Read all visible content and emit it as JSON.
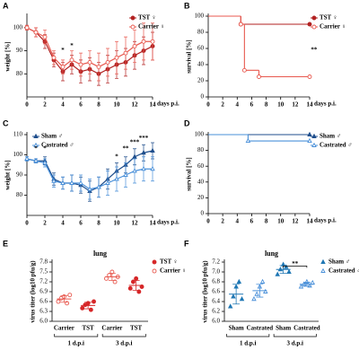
{
  "chart_data": [
    {
      "panel": "A",
      "type": "line",
      "x": [
        0,
        1,
        2,
        3,
        4,
        5,
        6,
        7,
        8,
        9,
        10,
        11,
        12,
        13,
        14
      ],
      "xlim": [
        0,
        14
      ],
      "xticks": [
        0,
        2,
        4,
        6,
        8,
        10,
        12,
        14
      ],
      "ylim": [
        70,
        105
      ],
      "yticks": [
        80,
        90,
        100
      ],
      "xlabel": "days p.i.",
      "ylabel": "weight [%]",
      "legend": "upper right",
      "series": [
        {
          "name": "TST ♀",
          "color": "#b22222",
          "marker": "circle",
          "filled": true,
          "values": [
            100,
            98,
            94,
            86,
            81,
            84,
            81,
            82,
            80,
            82,
            84,
            85,
            88,
            90,
            92
          ],
          "errors": [
            1,
            2,
            3,
            3,
            4,
            4,
            5,
            5,
            5,
            6,
            6,
            6,
            6,
            6,
            6
          ]
        },
        {
          "name": "Carrier ♀",
          "color": "#e8594f",
          "marker": "circle",
          "filled": false,
          "values": [
            100,
            98,
            96,
            87,
            83,
            86,
            84,
            85,
            83,
            85,
            87,
            89,
            92,
            94,
            94
          ],
          "errors": [
            1,
            2,
            3,
            3,
            3,
            4,
            5,
            5,
            6,
            6,
            7,
            7,
            7,
            8,
            8
          ]
        }
      ],
      "annotations": [
        "*",
        "*"
      ]
    },
    {
      "panel": "B",
      "type": "step",
      "xlim": [
        0,
        14
      ],
      "xticks": [
        0,
        2,
        4,
        6,
        8,
        10,
        12,
        14
      ],
      "ylim": [
        0,
        100
      ],
      "yticks": [
        0,
        20,
        40,
        60,
        80,
        100
      ],
      "xlabel": "days p.i.",
      "ylabel": "survival [%]",
      "legend": "upper right",
      "series": [
        {
          "name": "TST ♀",
          "color": "#b22222",
          "marker": "circle",
          "filled": true,
          "x": [
            0,
            4.5,
            14
          ],
          "values": [
            100,
            90,
            90
          ]
        },
        {
          "name": "Carrier ♀",
          "color": "#e8594f",
          "marker": "circle",
          "filled": false,
          "x": [
            0,
            4.5,
            5,
            7,
            14
          ],
          "values": [
            100,
            90,
            33,
            25,
            25
          ]
        }
      ],
      "annotations": [
        "**"
      ]
    },
    {
      "panel": "C",
      "type": "line",
      "x": [
        0,
        1,
        2,
        3,
        4,
        5,
        6,
        7,
        8,
        9,
        10,
        11,
        12,
        13,
        14
      ],
      "xlim": [
        0,
        14
      ],
      "xticks": [
        0,
        2,
        4,
        6,
        8,
        10,
        12,
        14
      ],
      "ylim": [
        70,
        110
      ],
      "yticks": [
        80,
        90,
        100,
        110
      ],
      "xlabel": "days p.i.",
      "ylabel": "weight [%]",
      "legend": "upper left",
      "series": [
        {
          "name": "Sham ♂",
          "color": "#1f4e8c",
          "marker": "triangle",
          "filled": true,
          "values": [
            98,
            97,
            97,
            88,
            86,
            86,
            85,
            82,
            84,
            88,
            92,
            95,
            99,
            101,
            102
          ],
          "errors": [
            1,
            1,
            2,
            3,
            3,
            4,
            4,
            5,
            5,
            5,
            4,
            4,
            4,
            4,
            4
          ]
        },
        {
          "name": "Castrated ♂",
          "color": "#4a90d9",
          "marker": "triangle",
          "filled": false,
          "values": [
            98,
            97,
            96,
            87,
            86,
            86,
            86,
            83,
            84,
            86,
            88,
            90,
            92,
            93,
            93
          ],
          "errors": [
            1,
            1,
            2,
            3,
            3,
            4,
            4,
            5,
            5,
            6,
            6,
            6,
            6,
            6,
            6
          ]
        }
      ],
      "annotations": [
        "*",
        "*",
        "*",
        "**",
        "***",
        "***"
      ]
    },
    {
      "panel": "D",
      "type": "step",
      "xlim": [
        0,
        14
      ],
      "xticks": [
        0,
        2,
        4,
        6,
        8,
        10,
        12,
        14
      ],
      "ylim": [
        0,
        100
      ],
      "yticks": [
        0,
        20,
        40,
        60,
        80,
        100
      ],
      "xlabel": "days p.i.",
      "ylabel": "survival [%]",
      "legend": "upper right",
      "series": [
        {
          "name": "Sham ♂",
          "color": "#1f4e8c",
          "marker": "triangle",
          "filled": true,
          "x": [
            0,
            14
          ],
          "values": [
            100,
            100
          ]
        },
        {
          "name": "Castrated ♂",
          "color": "#4a90d9",
          "marker": "triangle",
          "filled": false,
          "x": [
            0,
            5.5,
            14
          ],
          "values": [
            100,
            92,
            92
          ]
        }
      ],
      "annotations": []
    },
    {
      "panel": "E",
      "type": "dot",
      "title": "lung",
      "ylabel": "virus titer (log10 pfu/g)",
      "ylim": [
        6.0,
        7.8
      ],
      "yticks": [
        {
          "value": 6.0,
          "label": "6.0"
        },
        6.3,
        6.6,
        6.9,
        7.2,
        7.5,
        7.8
      ],
      "categories": [
        "Carrier",
        "TST",
        "Carrier",
        "TST"
      ],
      "groups": [
        "1 d.p.i",
        "3 d.p.i"
      ],
      "category_series": [
        1,
        0,
        1,
        0
      ],
      "series": [
        {
          "name": "TST ♀",
          "color": "#d62728",
          "marker": "circle",
          "filled": true
        },
        {
          "name": "Carrier ♀",
          "color": "#e8594f",
          "marker": "circle",
          "filled": false
        }
      ],
      "values": [
        [
          6.6,
          6.7,
          6.75,
          6.55,
          6.8
        ],
        [
          6.4,
          6.5,
          6.55,
          6.35,
          6.6
        ],
        [
          7.3,
          7.4,
          7.5,
          7.2,
          7.35
        ],
        [
          7.0,
          7.2,
          7.3,
          6.9,
          7.05
        ]
      ],
      "means": [
        6.68,
        6.48,
        7.35,
        7.09
      ],
      "errors": [
        0.1,
        0.1,
        0.11,
        0.15
      ],
      "annotations": []
    },
    {
      "panel": "F",
      "type": "dot",
      "title": "lung",
      "ylabel": "virus titer (log10 pfu/g)",
      "ylim": [
        6.0,
        7.2
      ],
      "yticks": [
        {
          "value": 6.0,
          "label": "6.0"
        },
        6.2,
        6.4,
        6.6,
        6.8,
        {
          "value": 7.0,
          "label": "7.0"
        },
        7.2
      ],
      "categories": [
        "Sham",
        "Castrated",
        "Sham",
        "Castrated"
      ],
      "groups": [
        "1 d.p.i",
        "3 d.p.i"
      ],
      "category_series": [
        0,
        1,
        0,
        1
      ],
      "series": [
        {
          "name": "Sham ♂",
          "color": "#1f77b4",
          "marker": "triangle",
          "filled": true
        },
        {
          "name": "Castrated ♂",
          "color": "#4a90d9",
          "marker": "triangle",
          "filled": false
        }
      ],
      "values": [
        [
          6.3,
          6.5,
          6.7,
          6.8,
          6.45
        ],
        [
          6.45,
          6.55,
          6.7,
          6.8,
          6.6
        ],
        [
          6.95,
          7.05,
          7.15,
          7.1,
          7.0
        ],
        [
          6.7,
          6.75,
          6.8,
          6.72,
          6.78
        ]
      ],
      "means": [
        6.55,
        6.62,
        7.05,
        6.75
      ],
      "errors": [
        0.2,
        0.13,
        0.08,
        0.04
      ],
      "annotations": [
        "**"
      ]
    }
  ]
}
